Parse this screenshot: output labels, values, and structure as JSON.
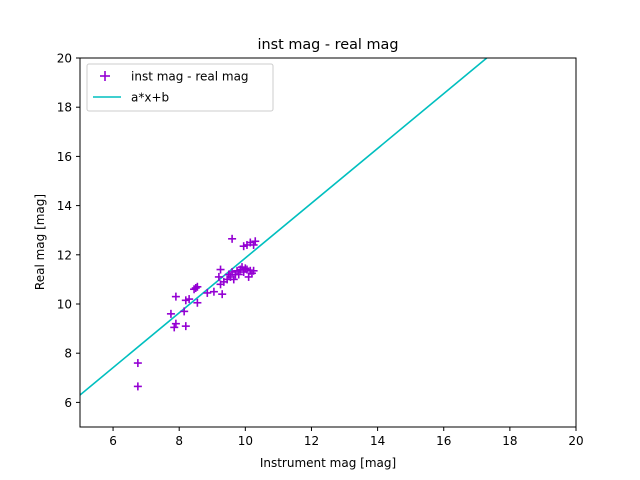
{
  "chart_data": {
    "type": "scatter",
    "title": "inst mag - real mag",
    "xlabel": "Instrument mag [mag]",
    "ylabel": "Real mag [mag]",
    "xlim": [
      5,
      20
    ],
    "ylim": [
      5,
      20
    ],
    "xticks": [
      6,
      8,
      10,
      12,
      14,
      16,
      18,
      20
    ],
    "yticks": [
      6,
      8,
      10,
      12,
      14,
      16,
      18,
      20
    ],
    "grid": false,
    "legend_position": "upper-left",
    "series": [
      {
        "name": "inst mag - real mag",
        "kind": "scatter",
        "marker": "plus",
        "color": "#9400d3",
        "points": [
          [
            6.75,
            7.6
          ],
          [
            6.75,
            6.65
          ],
          [
            7.75,
            9.6
          ],
          [
            7.85,
            9.05
          ],
          [
            7.9,
            9.2
          ],
          [
            7.9,
            10.3
          ],
          [
            8.15,
            9.7
          ],
          [
            8.2,
            9.1
          ],
          [
            8.2,
            10.15
          ],
          [
            8.3,
            10.2
          ],
          [
            8.45,
            10.6
          ],
          [
            8.5,
            10.65
          ],
          [
            8.55,
            10.7
          ],
          [
            8.55,
            10.05
          ],
          [
            8.85,
            10.45
          ],
          [
            9.05,
            10.5
          ],
          [
            9.2,
            11.1
          ],
          [
            9.25,
            11.4
          ],
          [
            9.25,
            10.8
          ],
          [
            9.3,
            10.4
          ],
          [
            9.35,
            10.9
          ],
          [
            9.45,
            11.0
          ],
          [
            9.5,
            11.2
          ],
          [
            9.55,
            11.1
          ],
          [
            9.6,
            11.3
          ],
          [
            9.6,
            12.65
          ],
          [
            9.65,
            11.0
          ],
          [
            9.7,
            11.2
          ],
          [
            9.75,
            11.35
          ],
          [
            9.8,
            11.2
          ],
          [
            9.85,
            11.4
          ],
          [
            9.9,
            11.5
          ],
          [
            9.95,
            11.3
          ],
          [
            9.95,
            12.35
          ],
          [
            10.0,
            11.45
          ],
          [
            10.05,
            11.4
          ],
          [
            10.05,
            12.4
          ],
          [
            10.1,
            11.1
          ],
          [
            10.15,
            11.35
          ],
          [
            10.15,
            12.5
          ],
          [
            10.2,
            11.25
          ],
          [
            10.25,
            11.35
          ],
          [
            10.25,
            12.4
          ],
          [
            10.3,
            12.55
          ]
        ]
      },
      {
        "name": "a*x+b",
        "kind": "line",
        "color": "#00bfbf",
        "x": [
          5,
          17.3
        ],
        "y": [
          6.3,
          20.0
        ]
      }
    ]
  }
}
